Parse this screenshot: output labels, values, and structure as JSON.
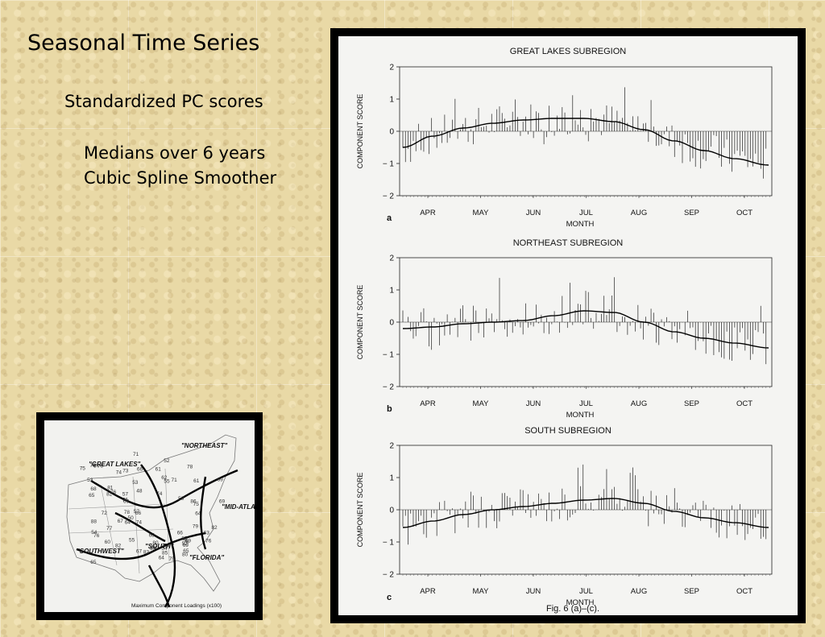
{
  "slide": {
    "title": "Seasonal Time Series",
    "subtitle": "Standardized PC scores",
    "bullet1": "Medians over 6 years",
    "bullet2": "Cubic Spline Smoother"
  },
  "figure_caption": "Fig. 6 (a)–(c).",
  "chart_data": [
    {
      "type": "bar",
      "panel_letter": "a",
      "title": "GREAT LAKES SUBREGION",
      "xlabel": "MONTH",
      "ylabel": "COMPONENT SCORE",
      "ylim": [
        -2,
        2
      ],
      "yticks": [
        "2",
        "1",
        "0",
        "-1",
        "-2"
      ],
      "months": [
        "APR",
        "MAY",
        "JUN",
        "JUL",
        "AUG",
        "SEP",
        "OCT"
      ],
      "spline": [
        [
          0,
          -0.5
        ],
        [
          15,
          -0.15
        ],
        [
          30,
          0.1
        ],
        [
          45,
          0.25
        ],
        [
          60,
          0.35
        ],
        [
          75,
          0.4
        ],
        [
          90,
          0.4
        ],
        [
          105,
          0.3
        ],
        [
          120,
          0.05
        ],
        [
          135,
          -0.3
        ],
        [
          150,
          -0.6
        ],
        [
          165,
          -0.85
        ],
        [
          182,
          -1.05
        ]
      ],
      "seed": 7
    },
    {
      "type": "bar",
      "panel_letter": "b",
      "title": "NORTHEAST SUBREGION",
      "xlabel": "MONTH",
      "ylabel": "COMPONENT SCORE",
      "ylim": [
        -2,
        2
      ],
      "yticks": [
        "2",
        "1",
        "0",
        "-1",
        "-2"
      ],
      "months": [
        "APR",
        "MAY",
        "JUN",
        "JUL",
        "AUG",
        "SEP",
        "OCT"
      ],
      "spline": [
        [
          0,
          -0.2
        ],
        [
          15,
          -0.15
        ],
        [
          30,
          -0.05
        ],
        [
          45,
          0.0
        ],
        [
          60,
          0.05
        ],
        [
          75,
          0.2
        ],
        [
          90,
          0.35
        ],
        [
          105,
          0.3
        ],
        [
          120,
          0.0
        ],
        [
          135,
          -0.3
        ],
        [
          150,
          -0.5
        ],
        [
          165,
          -0.65
        ],
        [
          182,
          -0.8
        ]
      ],
      "seed": 19
    },
    {
      "type": "bar",
      "panel_letter": "c",
      "title": "SOUTH SUBREGION",
      "xlabel": "MONTH",
      "ylabel": "COMPONENT SCORE",
      "ylim": [
        -2,
        2
      ],
      "yticks": [
        "2",
        "1",
        "0",
        "-1",
        "-2"
      ],
      "months": [
        "APR",
        "MAY",
        "JUN",
        "JUL",
        "AUG",
        "SEP",
        "OCT"
      ],
      "spline": [
        [
          0,
          -0.55
        ],
        [
          15,
          -0.35
        ],
        [
          30,
          -0.15
        ],
        [
          45,
          0.0
        ],
        [
          60,
          0.1
        ],
        [
          75,
          0.2
        ],
        [
          90,
          0.3
        ],
        [
          105,
          0.35
        ],
        [
          120,
          0.2
        ],
        [
          135,
          -0.05
        ],
        [
          150,
          -0.25
        ],
        [
          165,
          -0.4
        ],
        [
          182,
          -0.55
        ]
      ],
      "seed": 33
    }
  ],
  "map": {
    "regions": [
      "\"NORTHEAST\"",
      "\"GREAT LAKES\"",
      "\"MID-ATLANTIC\"",
      "\"SOUTHWEST\"",
      "\"SOUTH\"",
      "\"FLORIDA\""
    ],
    "caption": "Maximum Component Loadings (x100)",
    "loadings": [
      "67",
      "80",
      "74",
      "75",
      "69",
      "76",
      "78",
      "88",
      "86",
      "81",
      "77",
      "76",
      "83",
      "75",
      "78",
      "85",
      "85",
      "76",
      "82",
      "75",
      "78",
      "64",
      "82",
      "69",
      "54",
      "82",
      "52",
      "64",
      "73",
      "57",
      "76",
      "66",
      "79",
      "68",
      "52",
      "53",
      "57",
      "69",
      "66",
      "67",
      "65",
      "60",
      "78",
      "54",
      "65",
      "62",
      "68",
      "74",
      "71",
      "66",
      "60",
      "53",
      "57",
      "59",
      "69",
      "55",
      "64",
      "48",
      "71",
      "69",
      "65",
      "55",
      "76",
      "74",
      "61",
      "72",
      "50",
      "61",
      "63",
      "76",
      "80"
    ]
  }
}
